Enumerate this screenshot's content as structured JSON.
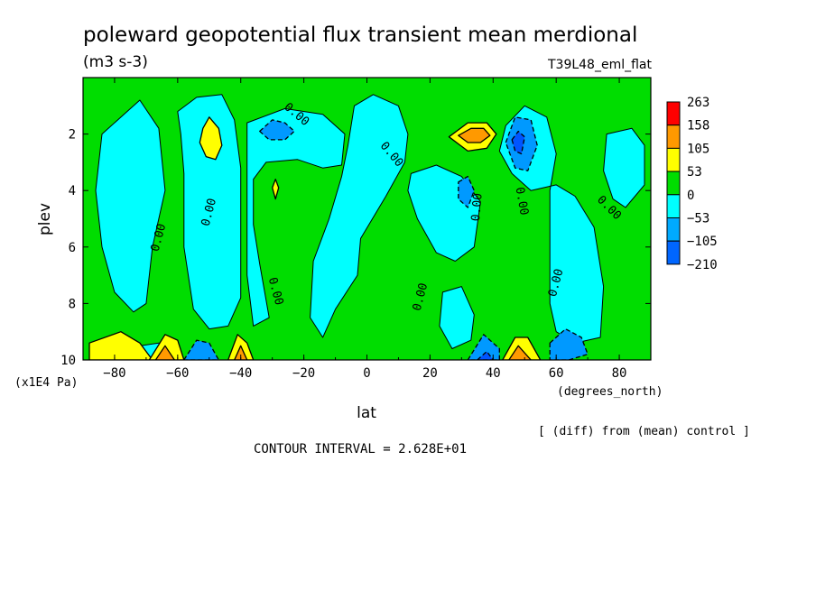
{
  "chart_data": {
    "type": "contour",
    "title": "poleward geopotential flux transient mean merdional",
    "units": "(m3 s-3)",
    "run_label": "T39L48_eml_flat",
    "xlabel": "lat",
    "xunits": "(degrees_north)",
    "ylabel": "plev",
    "yunits": "(x1E4 Pa)",
    "xlim": [
      -90,
      90
    ],
    "ylim": [
      10,
      0
    ],
    "x_ticks": [
      -80,
      -60,
      -40,
      -20,
      0,
      20,
      40,
      60,
      80
    ],
    "y_ticks": [
      2,
      4,
      6,
      8,
      10
    ],
    "x_tick_labels": [
      "-80",
      "-60",
      "-40",
      "-20",
      "0",
      "20",
      "40",
      "60",
      "80"
    ],
    "y_tick_labels": [
      "2",
      "4",
      "6",
      "8",
      "10"
    ],
    "contour_label": "0.00",
    "contour_interval_text": "CONTOUR INTERVAL = 2.628E+01",
    "diff_note": "[ (diff) from (mean) control ]",
    "legend": {
      "levels": [
        "263",
        "158",
        "105",
        "53",
        "0",
        "-53",
        "-105",
        "-210"
      ],
      "colors": [
        "#ff0000",
        "#ff9900",
        "#ffff00",
        "#00dd00",
        "#00ffff",
        "#00aaff",
        "#0066ff"
      ]
    },
    "field_colors": {
      "pos1": "#00dd00",
      "neg1": "#00ffff",
      "pos2": "#ffff00",
      "pos3": "#ff9900",
      "neg2": "#0099ff",
      "neg3": "#0055ff"
    },
    "regions": [
      {
        "sign": "neg1",
        "pts": [
          [
            -84,
            2
          ],
          [
            -72,
            0.8
          ],
          [
            -66,
            1.8
          ],
          [
            -64,
            4
          ],
          [
            -68,
            6
          ],
          [
            -70,
            8
          ],
          [
            -74,
            8.3
          ],
          [
            -80,
            7.6
          ],
          [
            -84,
            6
          ],
          [
            -86,
            4
          ]
        ]
      },
      {
        "sign": "neg1",
        "pts": [
          [
            -60,
            1.2
          ],
          [
            -54,
            0.7
          ],
          [
            -46,
            0.6
          ],
          [
            -42,
            1.5
          ],
          [
            -40,
            3.2
          ],
          [
            -40,
            5.6
          ],
          [
            -40,
            7.8
          ],
          [
            -44,
            8.8
          ],
          [
            -50,
            8.9
          ],
          [
            -55,
            8.2
          ],
          [
            -58,
            6
          ],
          [
            -58,
            3.4
          ],
          [
            -59,
            2
          ]
        ]
      },
      {
        "sign": "neg1",
        "pts": [
          [
            -38,
            1.6
          ],
          [
            -26,
            1.1
          ],
          [
            -14,
            1.3
          ],
          [
            -7,
            2
          ],
          [
            -8,
            3.1
          ],
          [
            -14,
            3.2
          ],
          [
            -22,
            2.9
          ],
          [
            -32,
            3
          ],
          [
            -36,
            3.6
          ],
          [
            -36,
            5.2
          ],
          [
            -34,
            6.6
          ],
          [
            -31,
            8.5
          ],
          [
            -36,
            8.8
          ],
          [
            -38,
            7
          ],
          [
            -38,
            3.8
          ]
        ]
      },
      {
        "sign": "neg1",
        "pts": [
          [
            -4,
            1
          ],
          [
            2,
            0.6
          ],
          [
            10,
            1
          ],
          [
            13,
            2
          ],
          [
            12,
            3
          ],
          [
            6,
            4.2
          ],
          [
            -2,
            5.7
          ],
          [
            -3,
            7
          ],
          [
            -10,
            8.2
          ],
          [
            -14,
            9.2
          ],
          [
            -18,
            8.5
          ],
          [
            -17,
            6.5
          ],
          [
            -12,
            5
          ],
          [
            -8,
            3.5
          ],
          [
            -6,
            2.4
          ]
        ]
      },
      {
        "sign": "neg1",
        "pts": [
          [
            14,
            3.4
          ],
          [
            22,
            3.1
          ],
          [
            30,
            3.5
          ],
          [
            36,
            4.4
          ],
          [
            34,
            6
          ],
          [
            28,
            6.5
          ],
          [
            22,
            6.2
          ],
          [
            16,
            5
          ],
          [
            13,
            4
          ]
        ]
      },
      {
        "sign": "neg1",
        "pts": [
          [
            24,
            7.6
          ],
          [
            30,
            7.4
          ],
          [
            34,
            8.4
          ],
          [
            33,
            9.3
          ],
          [
            27,
            9.6
          ],
          [
            23,
            8.8
          ]
        ]
      },
      {
        "sign": "neg1",
        "pts": [
          [
            44,
            1.7
          ],
          [
            50,
            1
          ],
          [
            57,
            1.4
          ],
          [
            60,
            2.7
          ],
          [
            58,
            4
          ],
          [
            58,
            6
          ],
          [
            58,
            8
          ],
          [
            60,
            9
          ],
          [
            66,
            9.4
          ],
          [
            74,
            9.2
          ],
          [
            75,
            7.4
          ],
          [
            72,
            5.3
          ],
          [
            66,
            4.2
          ],
          [
            60,
            3.8
          ],
          [
            52,
            4
          ],
          [
            46,
            3.4
          ],
          [
            42,
            2.6
          ]
        ]
      },
      {
        "sign": "neg1",
        "pts": [
          [
            76,
            2
          ],
          [
            84,
            1.8
          ],
          [
            88,
            2.4
          ],
          [
            88,
            3.8
          ],
          [
            82,
            4.6
          ],
          [
            78,
            4.3
          ],
          [
            75,
            3.3
          ]
        ]
      },
      {
        "sign": "neg1",
        "pts": [
          [
            -78,
            9.6
          ],
          [
            -66,
            9.4
          ],
          [
            -60,
            9.6
          ],
          [
            -62,
            10
          ],
          [
            -78,
            10
          ]
        ]
      },
      {
        "sign": "pos2",
        "pts": [
          [
            -52,
            1.8
          ],
          [
            -50,
            1.4
          ],
          [
            -47,
            1.8
          ],
          [
            -46,
            2.4
          ],
          [
            -48,
            2.9
          ],
          [
            -51,
            2.8
          ],
          [
            -53,
            2.3
          ]
        ]
      },
      {
        "sign": "pos2",
        "pts": [
          [
            -30,
            3.9
          ],
          [
            -29,
            3.6
          ],
          [
            -28,
            3.9
          ],
          [
            -29,
            4.3
          ]
        ]
      },
      {
        "sign": "pos2",
        "pts": [
          [
            26,
            2.1
          ],
          [
            32,
            1.6
          ],
          [
            38,
            1.6
          ],
          [
            41,
            2
          ],
          [
            38,
            2.5
          ],
          [
            32,
            2.6
          ]
        ]
      },
      {
        "sign": "pos3",
        "pts": [
          [
            29,
            2.05
          ],
          [
            33,
            1.8
          ],
          [
            37,
            1.8
          ],
          [
            39,
            2.05
          ],
          [
            36,
            2.3
          ],
          [
            32,
            2.3
          ]
        ]
      },
      {
        "sign": "pos2",
        "pts": [
          [
            -88,
            9.4
          ],
          [
            -78,
            9
          ],
          [
            -72,
            9.4
          ],
          [
            -68,
            10
          ],
          [
            -88,
            10
          ]
        ]
      },
      {
        "sign": "pos2",
        "pts": [
          [
            -69,
            10
          ],
          [
            -64,
            9.1
          ],
          [
            -60,
            9.3
          ],
          [
            -58,
            10
          ]
        ]
      },
      {
        "sign": "pos3",
        "pts": [
          [
            -67,
            10
          ],
          [
            -64,
            9.5
          ],
          [
            -61,
            10
          ]
        ]
      },
      {
        "sign": "pos2",
        "pts": [
          [
            -44,
            10
          ],
          [
            -41,
            9.1
          ],
          [
            -38,
            9.4
          ],
          [
            -36,
            10
          ]
        ]
      },
      {
        "sign": "pos3",
        "pts": [
          [
            -42,
            10
          ],
          [
            -40,
            9.5
          ],
          [
            -38,
            10
          ]
        ]
      },
      {
        "sign": "pos2",
        "pts": [
          [
            43,
            10
          ],
          [
            47,
            9.2
          ],
          [
            51,
            9.2
          ],
          [
            55,
            10
          ]
        ]
      },
      {
        "sign": "pos3",
        "pts": [
          [
            45,
            10
          ],
          [
            48,
            9.5
          ],
          [
            52,
            10
          ]
        ]
      },
      {
        "sign": "neg2",
        "pts": [
          [
            -34,
            1.9
          ],
          [
            -30,
            1.5
          ],
          [
            -26,
            1.6
          ],
          [
            -23,
            1.9
          ],
          [
            -26,
            2.2
          ],
          [
            -31,
            2.2
          ]
        ]
      },
      {
        "sign": "neg2",
        "pts": [
          [
            29,
            3.7
          ],
          [
            32,
            3.5
          ],
          [
            34,
            4
          ],
          [
            32,
            4.6
          ],
          [
            29,
            4.3
          ]
        ]
      },
      {
        "sign": "neg2",
        "pts": [
          [
            44,
            2.3
          ],
          [
            47,
            1.4
          ],
          [
            52,
            1.5
          ],
          [
            54,
            2.4
          ],
          [
            51,
            3.3
          ],
          [
            47,
            3.2
          ]
        ]
      },
      {
        "sign": "neg3",
        "pts": [
          [
            46,
            2.2
          ],
          [
            48,
            1.9
          ],
          [
            50,
            2.1
          ],
          [
            49,
            2.7
          ],
          [
            47,
            2.6
          ]
        ]
      },
      {
        "sign": "neg2",
        "pts": [
          [
            -58,
            10
          ],
          [
            -54,
            9.3
          ],
          [
            -50,
            9.4
          ],
          [
            -47,
            10
          ]
        ]
      },
      {
        "sign": "neg2",
        "pts": [
          [
            32,
            10
          ],
          [
            37,
            9.1
          ],
          [
            42,
            9.6
          ],
          [
            42,
            10
          ]
        ]
      },
      {
        "sign": "neg3",
        "pts": [
          [
            35,
            10
          ],
          [
            38,
            9.7
          ],
          [
            40,
            10
          ]
        ]
      },
      {
        "sign": "neg2",
        "pts": [
          [
            58,
            9.4
          ],
          [
            63,
            8.9
          ],
          [
            68,
            9.2
          ],
          [
            70,
            9.8
          ],
          [
            64,
            10
          ],
          [
            58,
            10
          ]
        ]
      }
    ],
    "contour_label_positions": [
      [
        -65,
        5.7,
        -75
      ],
      [
        -49,
        4.8,
        -75
      ],
      [
        -30,
        7.6,
        75
      ],
      [
        -23,
        1.4,
        40
      ],
      [
        7,
        2.8,
        50
      ],
      [
        18,
        7.8,
        -75
      ],
      [
        36,
        4.6,
        -85
      ],
      [
        48,
        4.4,
        80
      ],
      [
        61,
        7.3,
        -75
      ],
      [
        76,
        4.7,
        45
      ]
    ]
  }
}
